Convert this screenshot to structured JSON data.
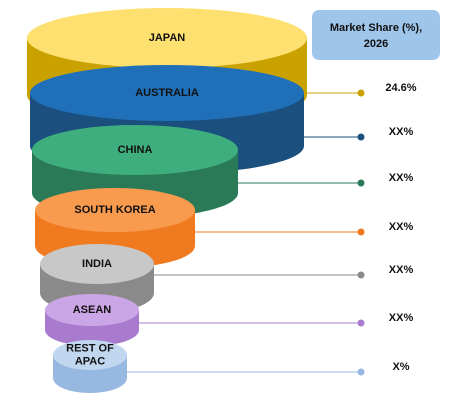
{
  "legend": {
    "lines": [
      "Market Share (%),",
      "2026"
    ]
  },
  "items": [
    {
      "label": [
        "JAPAN"
      ],
      "value": "24.6%"
    },
    {
      "label": [
        "AUSTRALIA"
      ],
      "value": "XX%"
    },
    {
      "label": [
        "CHINA"
      ],
      "value": "XX%"
    },
    {
      "label": [
        "SOUTH KOREA"
      ],
      "value": "XX%"
    },
    {
      "label": [
        "INDIA"
      ],
      "value": "XX%"
    },
    {
      "label": [
        "ASEAN"
      ],
      "value": "XX%"
    },
    {
      "label": [
        "REST OF",
        "APAC"
      ],
      "value": "X%"
    }
  ]
}
